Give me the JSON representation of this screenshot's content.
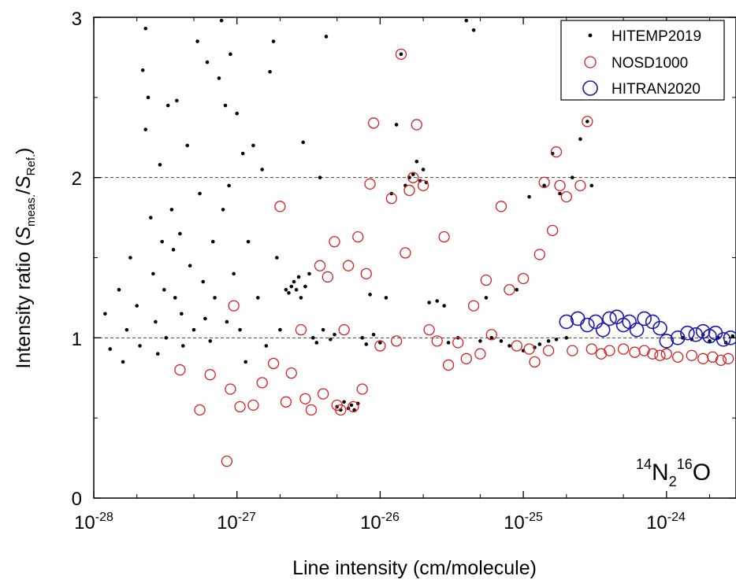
{
  "chart_data": {
    "type": "scatter",
    "title": "",
    "xlabel": "Line intensity (cm/molecule)",
    "ylabel": {
      "prefix": "Intensity ratio (",
      "s1": "S",
      "sub1": "meas.",
      "slash": "/",
      "s2": "S",
      "sub2": "Ref.",
      "suffix": ")"
    },
    "x_scale": "log",
    "xlim": [
      1e-28,
      3e-24
    ],
    "ylim": [
      0,
      3
    ],
    "x_ticks": [
      {
        "base": "10",
        "exp": "-28",
        "value": 1e-28
      },
      {
        "base": "10",
        "exp": "-27",
        "value": 1e-27
      },
      {
        "base": "10",
        "exp": "-26",
        "value": 1e-26
      },
      {
        "base": "10",
        "exp": "-25",
        "value": 1e-25
      },
      {
        "base": "10",
        "exp": "-24",
        "value": 1e-24
      }
    ],
    "y_ticks": [
      "0",
      "1",
      "2",
      "3"
    ],
    "reference_lines_y": [
      1,
      2
    ],
    "annotation": {
      "sup1": "14",
      "n": "N",
      "sub": "2",
      "sup2": "16",
      "o": "O"
    },
    "legend_position": "top-right",
    "series": [
      {
        "name": "HITEMP2019",
        "marker": "dot",
        "color": "#000000",
        "points": [
          [
            1.2e-28,
            1.15
          ],
          [
            1.3e-28,
            0.93
          ],
          [
            1.5e-28,
            1.3
          ],
          [
            1.6e-28,
            0.85
          ],
          [
            1.7e-28,
            1.05
          ],
          [
            1.8e-28,
            1.5
          ],
          [
            2e-28,
            1.2
          ],
          [
            2.1e-28,
            0.95
          ],
          [
            2.2e-28,
            2.67
          ],
          [
            2.3e-28,
            2.93
          ],
          [
            2.3e-28,
            2.3
          ],
          [
            2.4e-28,
            2.5
          ],
          [
            2.5e-28,
            1.75
          ],
          [
            2.6e-28,
            1.4
          ],
          [
            2.7e-28,
            1.1
          ],
          [
            2.8e-28,
            0.9
          ],
          [
            2.9e-28,
            2.08
          ],
          [
            3e-28,
            1.6
          ],
          [
            3.1e-28,
            1.3
          ],
          [
            3.2e-28,
            1.0
          ],
          [
            3.3e-28,
            2.45
          ],
          [
            3.5e-28,
            1.8
          ],
          [
            3.6e-28,
            1.55
          ],
          [
            3.7e-28,
            1.25
          ],
          [
            3.8e-28,
            2.48
          ],
          [
            4e-28,
            1.65
          ],
          [
            4.1e-28,
            1.15
          ],
          [
            4.2e-28,
            0.95
          ],
          [
            4.5e-28,
            2.2
          ],
          [
            4.7e-28,
            1.45
          ],
          [
            5e-28,
            1.05
          ],
          [
            5.3e-28,
            2.85
          ],
          [
            5.5e-28,
            1.9
          ],
          [
            5.8e-28,
            1.35
          ],
          [
            6e-28,
            1.12
          ],
          [
            6.2e-28,
            2.72
          ],
          [
            6.5e-28,
            0.98
          ],
          [
            6.8e-28,
            1.6
          ],
          [
            7e-28,
            1.25
          ],
          [
            7.5e-28,
            2.62
          ],
          [
            7.8e-28,
            2.98
          ],
          [
            8e-28,
            1.8
          ],
          [
            8.3e-28,
            2.45
          ],
          [
            8.5e-28,
            1.1
          ],
          [
            8.8e-28,
            1.95
          ],
          [
            9e-28,
            2.77
          ],
          [
            9.5e-28,
            1.4
          ],
          [
            1e-27,
            2.4
          ],
          [
            1.05e-27,
            1.05
          ],
          [
            1.1e-27,
            2.15
          ],
          [
            1.15e-27,
            0.85
          ],
          [
            1.2e-27,
            1.6
          ],
          [
            1.3e-27,
            2.2
          ],
          [
            1.4e-27,
            1.25
          ],
          [
            1.5e-27,
            2.05
          ],
          [
            1.6e-27,
            0.95
          ],
          [
            1.7e-27,
            2.66
          ],
          [
            1.8e-27,
            2.85
          ],
          [
            1.9e-27,
            1.5
          ],
          [
            2e-27,
            1.05
          ],
          [
            2.2e-27,
            1.3
          ],
          [
            2.3e-27,
            1.28
          ],
          [
            2.4e-27,
            1.32
          ],
          [
            2.5e-27,
            1.35
          ],
          [
            2.6e-27,
            1.3
          ],
          [
            2.7e-27,
            1.38
          ],
          [
            2.8e-27,
            1.25
          ],
          [
            2.9e-27,
            2.22
          ],
          [
            3e-27,
            1.32
          ],
          [
            3.2e-27,
            1.4
          ],
          [
            3.4e-27,
            1.0
          ],
          [
            3.6e-27,
            0.97
          ],
          [
            3.8e-27,
            2.0
          ],
          [
            4e-27,
            1.05
          ],
          [
            4.2e-27,
            2.88
          ],
          [
            4.5e-27,
            0.99
          ],
          [
            4.8e-27,
            1.02
          ],
          [
            5e-27,
            0.57
          ],
          [
            5.3e-27,
            0.55
          ],
          [
            5.6e-27,
            0.6
          ],
          [
            6e-27,
            0.56
          ],
          [
            6.3e-27,
            0.58
          ],
          [
            6.6e-27,
            0.55
          ],
          [
            7e-27,
            0.59
          ],
          [
            7.5e-27,
            1.0
          ],
          [
            8e-27,
            0.96
          ],
          [
            8.5e-27,
            1.27
          ],
          [
            9e-27,
            1.02
          ],
          [
            1e-26,
            0.97
          ],
          [
            1.1e-26,
            1.25
          ],
          [
            1.2e-26,
            1.9
          ],
          [
            1.3e-26,
            2.33
          ],
          [
            1.4e-26,
            2.77
          ],
          [
            1.5e-26,
            1.95
          ],
          [
            1.6e-26,
            2.0
          ],
          [
            1.7e-26,
            2.02
          ],
          [
            1.8e-26,
            2.1
          ],
          [
            1.9e-26,
            1.98
          ],
          [
            2e-26,
            2.05
          ],
          [
            2.1e-26,
            1.97
          ],
          [
            2.2e-26,
            1.22
          ],
          [
            2.5e-26,
            1.23
          ],
          [
            2.8e-26,
            1.2
          ],
          [
            3e-26,
            0.97
          ],
          [
            3.5e-26,
            1.0
          ],
          [
            4e-26,
            2.98
          ],
          [
            4.5e-26,
            2.92
          ],
          [
            5e-26,
            0.98
          ],
          [
            5.5e-26,
            1.25
          ],
          [
            6e-26,
            1.0
          ],
          [
            7e-26,
            0.98
          ],
          [
            8e-26,
            0.95
          ],
          [
            9e-26,
            1.3
          ],
          [
            1e-25,
            0.92
          ],
          [
            1.1e-25,
            1.88
          ],
          [
            1.2e-25,
            0.94
          ],
          [
            1.3e-25,
            0.96
          ],
          [
            1.4e-25,
            1.95
          ],
          [
            1.5e-25,
            0.98
          ],
          [
            1.6e-25,
            2.15
          ],
          [
            1.7e-25,
            0.99
          ],
          [
            1.8e-25,
            1.9
          ],
          [
            2e-25,
            1.0
          ],
          [
            2.2e-25,
            2.0
          ],
          [
            2.5e-25,
            2.24
          ],
          [
            2.8e-25,
            2.35
          ],
          [
            3e-25,
            1.95
          ],
          [
            1.3e-24,
            1.0
          ],
          [
            1.5e-24,
            0.99
          ],
          [
            1.8e-24,
            1.02
          ],
          [
            2e-24,
            0.98
          ],
          [
            2.3e-24,
            1.0
          ],
          [
            2.6e-24,
            0.97
          ],
          [
            2.9e-24,
            1.01
          ]
        ]
      },
      {
        "name": "NOSD1000",
        "marker": "open-circle",
        "color": "#d82020",
        "points": [
          [
            4e-28,
            0.8
          ],
          [
            5.5e-28,
            0.55
          ],
          [
            6.5e-28,
            0.77
          ],
          [
            8.5e-28,
            0.23
          ],
          [
            9e-28,
            0.68
          ],
          [
            9.5e-28,
            1.2
          ],
          [
            1.05e-27,
            0.57
          ],
          [
            1.3e-27,
            0.58
          ],
          [
            1.5e-27,
            0.72
          ],
          [
            1.8e-27,
            0.84
          ],
          [
            2e-27,
            1.82
          ],
          [
            2.2e-27,
            0.6
          ],
          [
            2.4e-27,
            0.78
          ],
          [
            2.8e-27,
            1.05
          ],
          [
            3e-27,
            0.62
          ],
          [
            3.3e-27,
            0.55
          ],
          [
            3.8e-27,
            1.45
          ],
          [
            4e-27,
            0.65
          ],
          [
            4.3e-27,
            1.38
          ],
          [
            4.8e-27,
            1.6
          ],
          [
            5e-27,
            0.58
          ],
          [
            5.3e-27,
            0.55
          ],
          [
            5.6e-27,
            1.05
          ],
          [
            6e-27,
            1.45
          ],
          [
            6.5e-27,
            0.57
          ],
          [
            7e-27,
            1.63
          ],
          [
            7.5e-27,
            0.68
          ],
          [
            8e-27,
            1.4
          ],
          [
            8.5e-27,
            1.96
          ],
          [
            9e-27,
            2.34
          ],
          [
            1e-26,
            0.95
          ],
          [
            1.2e-26,
            1.87
          ],
          [
            1.3e-26,
            0.98
          ],
          [
            1.4e-26,
            2.77
          ],
          [
            1.5e-26,
            1.53
          ],
          [
            1.6e-26,
            1.92
          ],
          [
            1.7e-26,
            2.0
          ],
          [
            1.8e-26,
            2.33
          ],
          [
            2e-26,
            1.95
          ],
          [
            2.2e-26,
            1.05
          ],
          [
            2.5e-26,
            0.98
          ],
          [
            2.8e-26,
            1.63
          ],
          [
            3e-26,
            0.83
          ],
          [
            3.5e-26,
            0.97
          ],
          [
            4e-26,
            0.87
          ],
          [
            4.5e-26,
            1.2
          ],
          [
            5e-26,
            0.9
          ],
          [
            5.5e-26,
            1.36
          ],
          [
            6e-26,
            1.02
          ],
          [
            7e-26,
            1.82
          ],
          [
            8e-26,
            1.3
          ],
          [
            9e-26,
            0.95
          ],
          [
            1e-25,
            1.37
          ],
          [
            1.1e-25,
            0.93
          ],
          [
            1.2e-25,
            0.85
          ],
          [
            1.3e-25,
            1.52
          ],
          [
            1.4e-25,
            1.97
          ],
          [
            1.5e-25,
            0.92
          ],
          [
            1.6e-25,
            1.67
          ],
          [
            1.7e-25,
            2.16
          ],
          [
            1.8e-25,
            1.95
          ],
          [
            2e-25,
            1.88
          ],
          [
            2.2e-25,
            0.92
          ],
          [
            2.5e-25,
            1.95
          ],
          [
            2.8e-25,
            2.35
          ],
          [
            3e-25,
            0.93
          ],
          [
            3.5e-25,
            0.9
          ],
          [
            4e-25,
            0.92
          ],
          [
            5e-25,
            0.93
          ],
          [
            6e-25,
            0.91
          ],
          [
            7e-25,
            0.92
          ],
          [
            8e-25,
            0.9
          ],
          [
            9e-25,
            0.89
          ],
          [
            1e-24,
            0.9
          ],
          [
            1.2e-24,
            0.88
          ],
          [
            1.5e-24,
            0.89
          ],
          [
            1.8e-24,
            0.87
          ],
          [
            2.1e-24,
            0.88
          ],
          [
            2.4e-24,
            0.86
          ],
          [
            2.7e-24,
            0.87
          ]
        ]
      },
      {
        "name": "HITRAN2020",
        "marker": "open-circle-large",
        "color": "#1a1ab0",
        "points": [
          [
            2e-25,
            1.1
          ],
          [
            2.4e-25,
            1.12
          ],
          [
            2.8e-25,
            1.08
          ],
          [
            3.2e-25,
            1.1
          ],
          [
            3.6e-25,
            1.05
          ],
          [
            4e-25,
            1.12
          ],
          [
            4.5e-25,
            1.13
          ],
          [
            5e-25,
            1.08
          ],
          [
            5.5e-25,
            1.1
          ],
          [
            6.2e-25,
            1.05
          ],
          [
            7e-25,
            1.12
          ],
          [
            8e-25,
            1.1
          ],
          [
            9e-25,
            1.06
          ],
          [
            1e-24,
            0.98
          ],
          [
            1.2e-24,
            1.0
          ],
          [
            1.4e-24,
            1.03
          ],
          [
            1.6e-24,
            1.02
          ],
          [
            1.8e-24,
            1.04
          ],
          [
            2e-24,
            1.01
          ],
          [
            2.2e-24,
            1.03
          ],
          [
            2.5e-24,
            0.99
          ],
          [
            2.8e-24,
            1.0
          ]
        ]
      }
    ]
  }
}
